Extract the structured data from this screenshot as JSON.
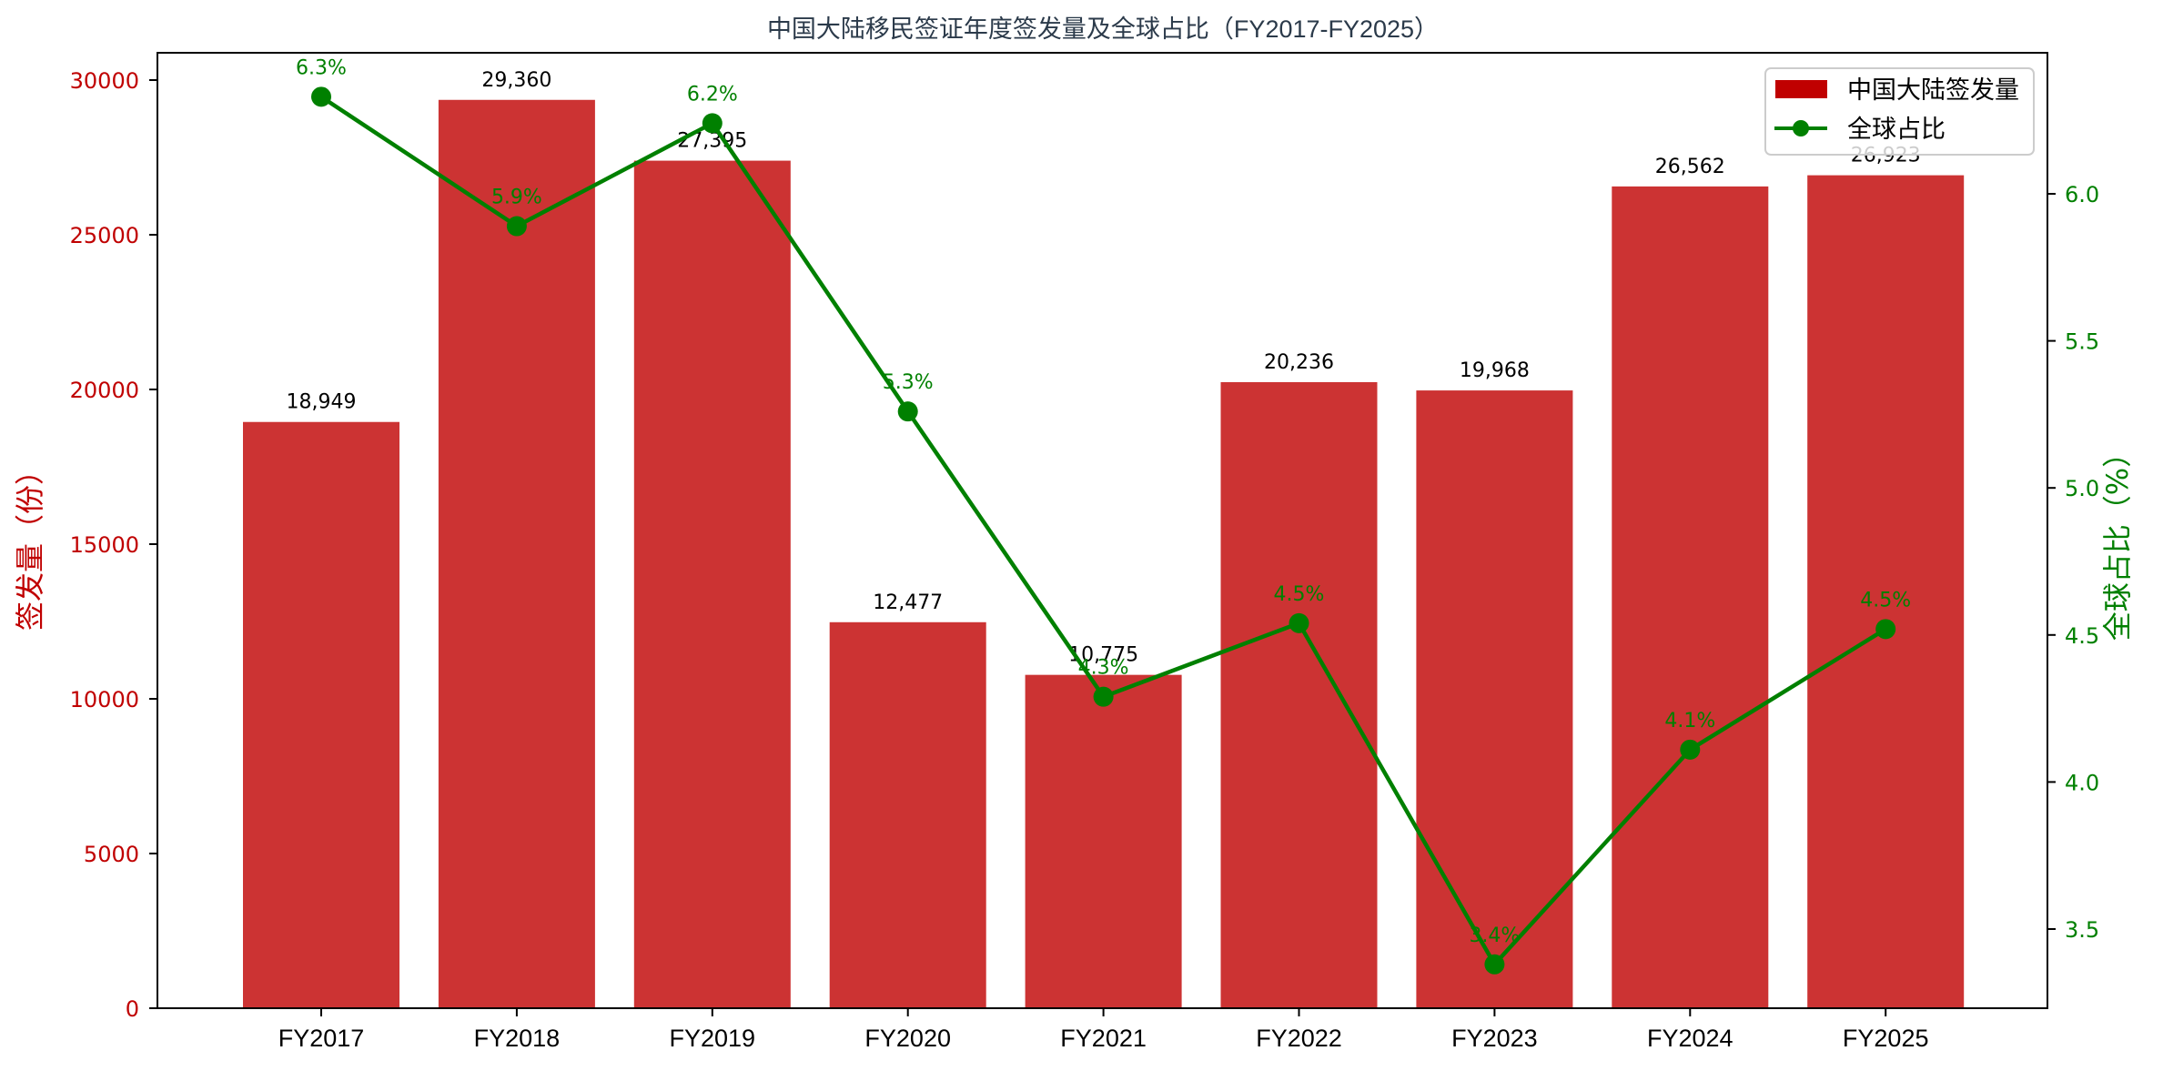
{
  "chart_data": {
    "type": "bar+line",
    "title": "中国大陆移民签证年度签发量及全球占比（FY2017-FY2025）",
    "categories": [
      "FY2017",
      "FY2018",
      "FY2019",
      "FY2020",
      "FY2021",
      "FY2022",
      "FY2023",
      "FY2024",
      "FY2025"
    ],
    "series": [
      {
        "name": "中国大陆签发量",
        "type": "bar",
        "axis": "left",
        "color": "#cc3333",
        "legend_color": "#c00000",
        "values": [
          18949,
          29360,
          27395,
          12477,
          10775,
          20236,
          19968,
          26562,
          26923
        ],
        "labels": [
          "18,949",
          "29,360",
          "27,395",
          "12,477",
          "10,775",
          "20,236",
          "19,968",
          "26,562",
          "26,923"
        ]
      },
      {
        "name": "全球占比",
        "type": "line",
        "axis": "right",
        "color": "#008000",
        "marker": "circle",
        "values": [
          6.33,
          5.89,
          6.24,
          5.26,
          4.29,
          4.54,
          3.38,
          4.11,
          4.52
        ],
        "labels": [
          "6.3%",
          "5.9%",
          "6.2%",
          "5.3%",
          "4.3%",
          "4.5%",
          "3.4%",
          "4.1%",
          "4.5%"
        ]
      }
    ],
    "xlabel": "",
    "ylabel": "签发量（份）",
    "ylabel_right": "全球占比（%）",
    "ylim": [
      0,
      30800
    ],
    "ylim_right": [
      3.25,
      6.48
    ],
    "yticks": [
      "0",
      "5000",
      "10000",
      "15000",
      "20000",
      "25000",
      "30000"
    ],
    "yticks_right": [
      "3.5",
      "4.0",
      "4.5",
      "5.0",
      "5.5",
      "6.0"
    ],
    "grid": false,
    "legend_position": "upper right",
    "legend": [
      "中国大陆签发量",
      "全球占比"
    ]
  }
}
